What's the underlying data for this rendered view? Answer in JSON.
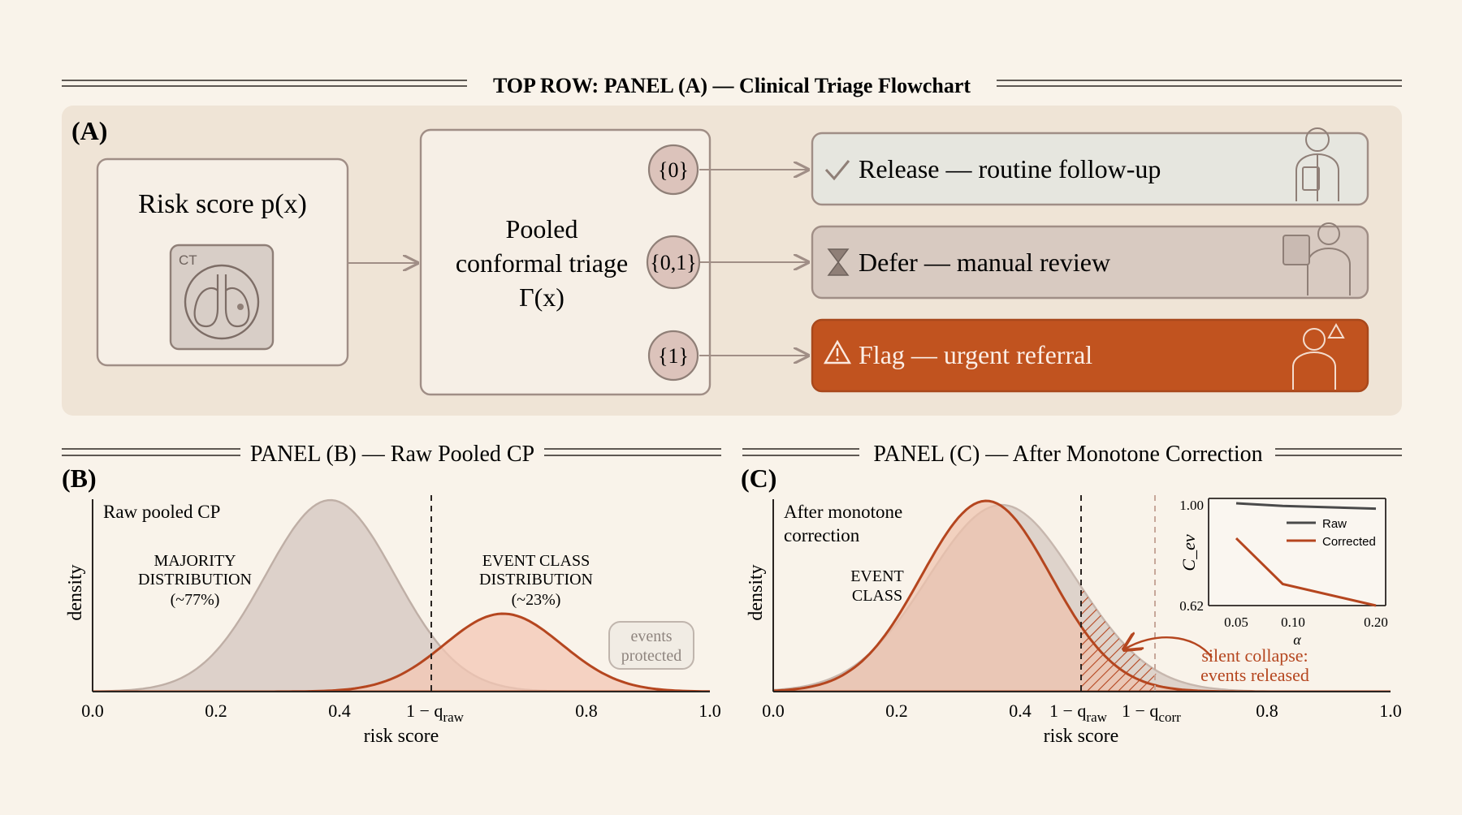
{
  "panelA": {
    "header": "TOP ROW: PANEL (A) — Clinical Triage Flowchart",
    "letter": "(A)",
    "input_title": "Risk score p(x)",
    "ct_label": "CT",
    "triage_title": [
      "Pooled",
      "conformal triage",
      "Γ(x)"
    ],
    "sets": [
      "{0}",
      "{0,1}",
      "{1}"
    ],
    "outcomes": [
      {
        "label": "Release — routine follow-up",
        "icon": "check-icon"
      },
      {
        "label": "Defer — manual review",
        "icon": "hourglass-icon"
      },
      {
        "label": "Flag — urgent referral",
        "icon": "warning-icon"
      }
    ]
  },
  "panelB": {
    "header": "PANEL (B) — Raw Pooled CP",
    "letter": "(B)",
    "subtitle": "Raw pooled CP",
    "ylabel": "density",
    "xlabel": "risk score",
    "ticks": [
      "0.0",
      "0.2",
      "0.4",
      "0.8",
      "1.0"
    ],
    "majority_label": [
      "MAJORITY",
      "DISTRIBUTION",
      "(~77%)"
    ],
    "event_label": [
      "EVENT CLASS",
      "DISTRIBUTION",
      "(~23%)"
    ],
    "badge": [
      "events",
      "protected"
    ],
    "threshold_label": "1 − q",
    "threshold_sub": "raw"
  },
  "panelC": {
    "header": "PANEL (C) — After Monotone Correction",
    "letter": "(C)",
    "subtitle": [
      "After monotone",
      "correction"
    ],
    "ylabel": "density",
    "xlabel": "risk score",
    "ticks": [
      "0.0",
      "0.2",
      "0.4",
      "0.8",
      "1.0"
    ],
    "event_label": [
      "EVENT",
      "CLASS"
    ],
    "threshold_raw_label": "1 − q",
    "threshold_raw_sub": "raw",
    "threshold_corr_label": "1 − q",
    "threshold_corr_sub": "corr",
    "collapse_label": [
      "silent collapse:",
      "events released"
    ]
  },
  "chart_data": {
    "type": "line",
    "title": "",
    "xlabel": "α",
    "ylabel": "C_ev",
    "x": [
      0.05,
      0.1,
      0.2
    ],
    "series": [
      {
        "name": "Raw",
        "values": [
          1.0,
          0.99,
          0.98
        ],
        "color": "#4a4a4a"
      },
      {
        "name": "Corrected",
        "values": [
          0.87,
          0.7,
          0.62
        ],
        "color": "#b5461f"
      }
    ],
    "x_ticks": [
      "0.05",
      "0.10",
      "0.20"
    ],
    "y_ticks": [
      "1.00",
      "0.62"
    ],
    "ylim": [
      0.62,
      1.0
    ],
    "legend": "top-right"
  },
  "colors": {
    "accent": "#c1531f",
    "event_line": "#b5461f",
    "majority_fill": "#d9cdc6",
    "event_fill": "#f3c7b4",
    "box_border": "#a08e86",
    "panel_bg": "#efe4d6"
  }
}
